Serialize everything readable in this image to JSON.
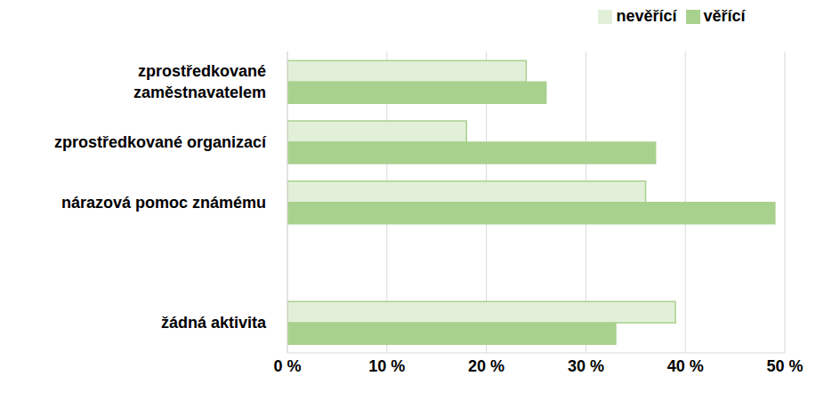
{
  "chart_data": {
    "type": "bar",
    "orientation": "horizontal",
    "categories": [
      "zprostředkované zaměstnavatelem",
      "zprostředkované organizací",
      "nárazová pomoc známému",
      null,
      "žádná aktivita"
    ],
    "series": [
      {
        "name": "nevěřící",
        "color": "#e2f0d9",
        "values": [
          24,
          18,
          36,
          null,
          39
        ]
      },
      {
        "name": "věřící",
        "color": "#a9d18e",
        "values": [
          26,
          37,
          49,
          null,
          33
        ]
      }
    ],
    "xlim": [
      0,
      50
    ],
    "xticks": [
      {
        "value": 0,
        "label": "0 %"
      },
      {
        "value": 10,
        "label": "10 %"
      },
      {
        "value": 20,
        "label": "20 %"
      },
      {
        "value": 30,
        "label": "30 %"
      },
      {
        "value": 40,
        "label": "40 %"
      },
      {
        "value": 50,
        "label": "50 %"
      }
    ],
    "grid": true,
    "legend": "top"
  }
}
